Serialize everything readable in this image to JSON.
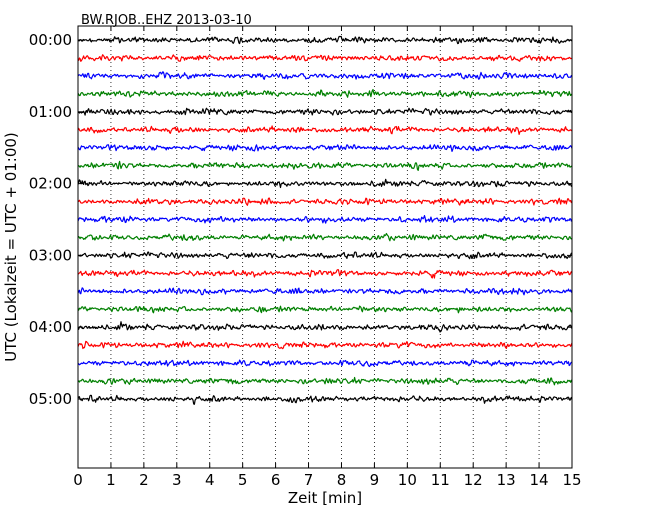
{
  "chart_data": {
    "type": "line",
    "title": "BW.RJOB..EHZ 2013-03-10",
    "xlabel": "Zeit  [min]",
    "ylabel": "UTC (Lokalzeit = UTC + 01:00)",
    "xlim": [
      0,
      15
    ],
    "x_ticks": [
      0,
      1,
      2,
      3,
      4,
      5,
      6,
      7,
      8,
      9,
      10,
      11,
      12,
      13,
      14,
      15
    ],
    "x_tick_labels": [
      "0",
      "1",
      "2",
      "3",
      "4",
      "5",
      "6",
      "7",
      "8",
      "9",
      "10",
      "11",
      "12",
      "13",
      "14",
      "15"
    ],
    "y_tick_labels": [
      "00:00",
      "01:00",
      "02:00",
      "03:00",
      "04:00",
      "05:00"
    ],
    "grid": "vertical dotted lines at each minute",
    "trace_interval_min": 15,
    "trace_start_times": [
      "00:00",
      "00:15",
      "00:30",
      "00:45",
      "01:00",
      "01:15",
      "01:30",
      "01:45",
      "02:00",
      "02:15",
      "02:30",
      "02:45",
      "03:00",
      "03:15",
      "03:30",
      "03:45",
      "04:00",
      "04:15",
      "04:30",
      "04:45",
      "05:00"
    ],
    "color_cycle": [
      "#000000",
      "#ff0000",
      "#0000ff",
      "#008000"
    ]
  }
}
